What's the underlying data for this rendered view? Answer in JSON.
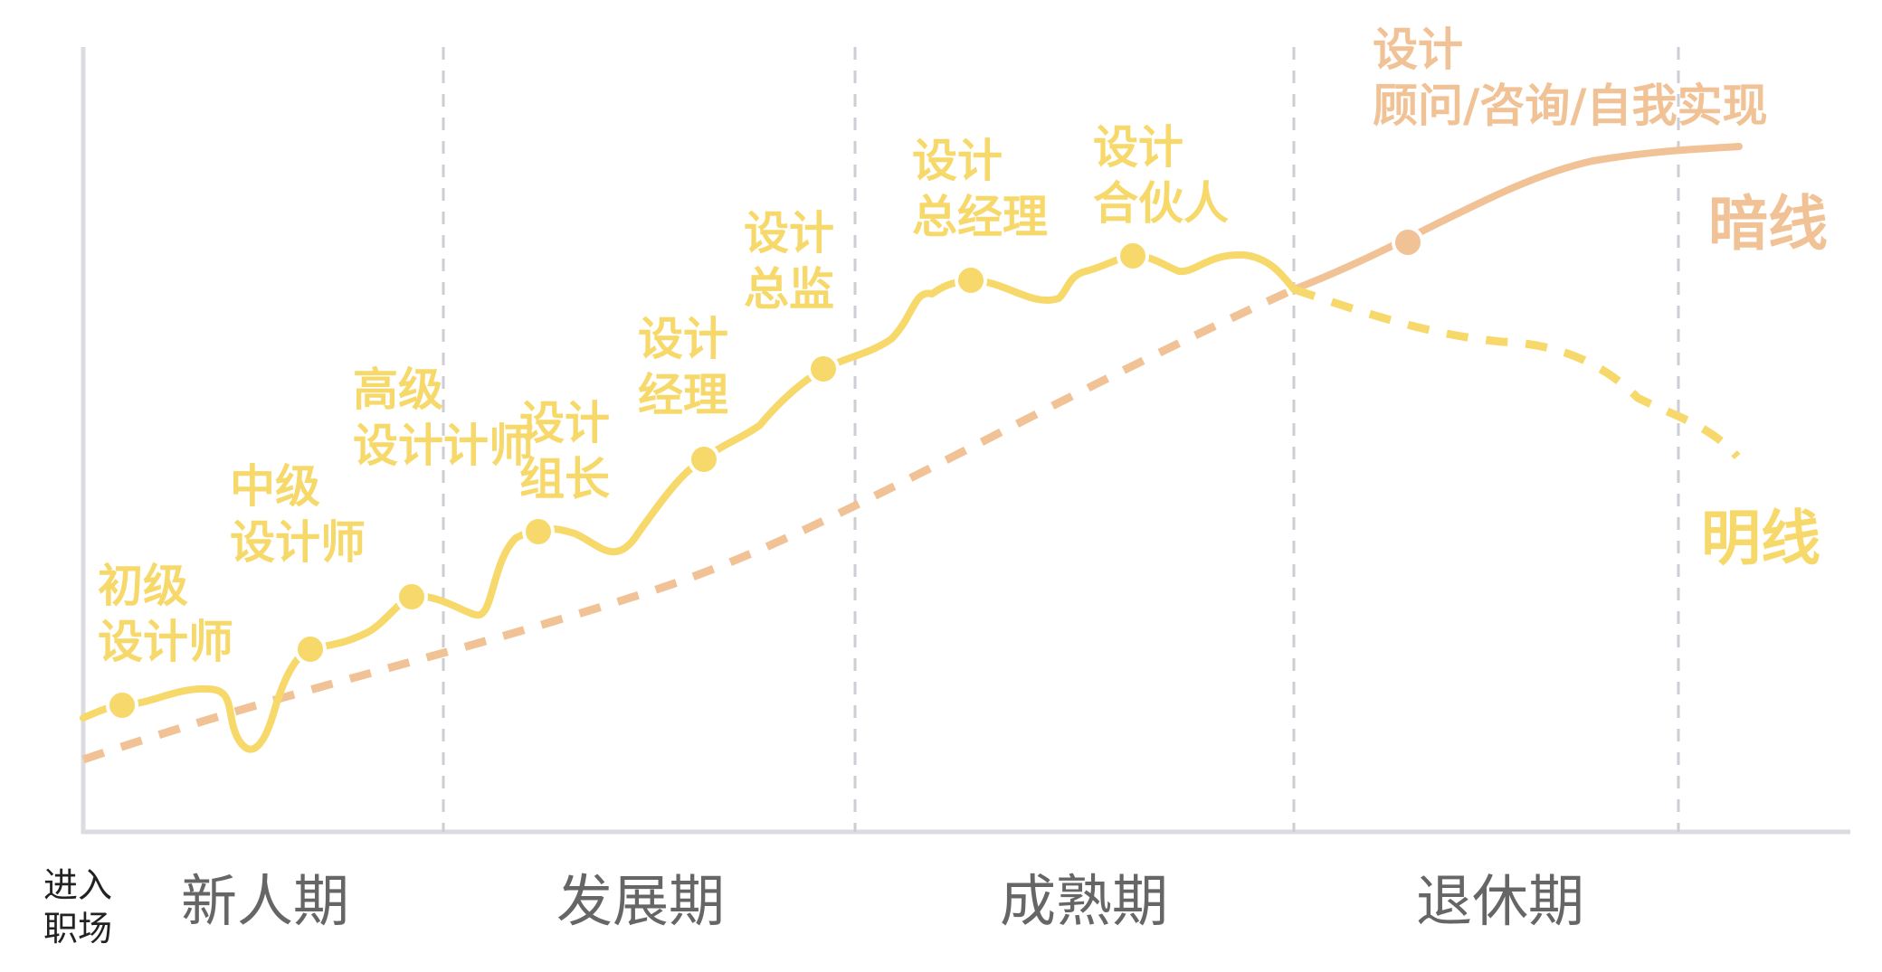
{
  "colors": {
    "ming": "#f6d96a",
    "an": "#f0c296",
    "phase_text": "#666666",
    "axis": "#dcdce0",
    "divider": "#cdcdd6"
  },
  "axis_note": [
    "进入",
    "职场"
  ],
  "phases": [
    "新人期",
    "发展期",
    "成熟期",
    "退休期"
  ],
  "stages": [
    {
      "lines": [
        "初级",
        "设计师"
      ]
    },
    {
      "lines": [
        "中级",
        "设计师"
      ]
    },
    {
      "lines": [
        "高级",
        "设计计师"
      ]
    },
    {
      "lines": [
        "设计",
        "组长"
      ]
    },
    {
      "lines": [
        "设计",
        "经理"
      ]
    },
    {
      "lines": [
        "设计",
        "总监"
      ]
    },
    {
      "lines": [
        "设计",
        "总经理"
      ]
    },
    {
      "lines": [
        "设计",
        "合伙人"
      ]
    }
  ],
  "an_stage": {
    "lines": [
      "设计",
      "顾问/咨询/自我实现"
    ]
  },
  "line_labels": {
    "an": "暗线",
    "ming": "明线"
  }
}
